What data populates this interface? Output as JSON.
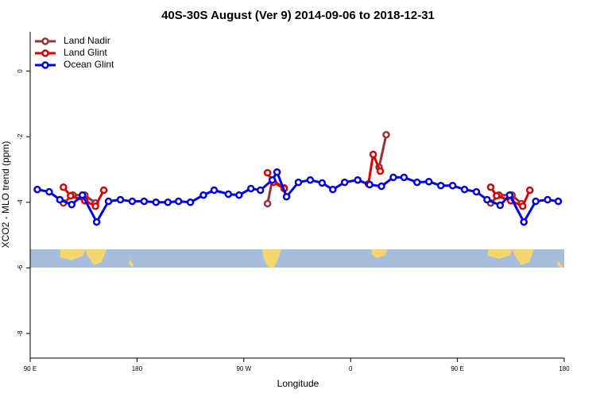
{
  "chart_data": {
    "type": "line",
    "title": "40S-30S August (Ver 9)   2014-09-06 to 2018-12-31",
    "x_label": "Longitude",
    "y_label": "XCO2 - MLO trend (ppm)",
    "xlim": [
      90,
      540
    ],
    "xticks": [
      {
        "value": 90,
        "label": "90 E"
      },
      {
        "value": 180,
        "label": "180"
      },
      {
        "value": 270,
        "label": "90 W"
      },
      {
        "value": 360,
        "label": "0"
      },
      {
        "value": 450,
        "label": "90 E"
      },
      {
        "value": 540,
        "label": "180"
      }
    ],
    "ylim": [
      -8.75,
      1.2
    ],
    "yticks": [
      0,
      -2,
      -4,
      -6,
      -8
    ],
    "legend": "top-left",
    "series": [
      {
        "name": "Land Nadir",
        "color": "#993333",
        "x": [
          118,
          126,
          136,
          145,
          null,
          290,
          294,
          304,
          null,
          384,
          390,
          null,
          478,
          485,
          496,
          504
        ],
        "values": [
          -4.02,
          -3.78,
          -3.78,
          -4.02,
          null,
          -4.04,
          -3.32,
          -3.56,
          null,
          -2.93,
          -1.94,
          null,
          -4.02,
          -3.78,
          -3.78,
          -4.04
        ]
      },
      {
        "name": "Land Glint",
        "color": "#e00000",
        "x": [
          118,
          124,
          136,
          145,
          152,
          null,
          290,
          295,
          304,
          null,
          375,
          379,
          385,
          null,
          478,
          483,
          495,
          505,
          511
        ],
        "values": [
          -3.54,
          -3.8,
          -3.95,
          -4.12,
          -3.63,
          null,
          -3.1,
          -3.39,
          -3.58,
          null,
          -3.44,
          -2.54,
          -3.05,
          null,
          -3.54,
          -3.8,
          -3.95,
          -4.12,
          -3.63
        ]
      },
      {
        "name": "Ocean Glint",
        "color": "#0000ee",
        "x": [
          96,
          106,
          115,
          125,
          134,
          146,
          156,
          166,
          176,
          186,
          196,
          206,
          215,
          225,
          236,
          245,
          257,
          266,
          276,
          284,
          294,
          298,
          306,
          316,
          326,
          336,
          345,
          355,
          366,
          376,
          386,
          396,
          405,
          416,
          426,
          436,
          446,
          456,
          466,
          475,
          486,
          494,
          506,
          516,
          526,
          535
        ],
        "values": [
          -3.61,
          -3.68,
          -3.92,
          -4.07,
          -3.78,
          -4.6,
          -3.97,
          -3.92,
          -3.97,
          -3.97,
          -4.0,
          -4.0,
          -3.97,
          -4.0,
          -3.78,
          -3.63,
          -3.75,
          -3.78,
          -3.58,
          -3.63,
          -3.32,
          -3.08,
          -3.83,
          -3.39,
          -3.32,
          -3.41,
          -3.61,
          -3.39,
          -3.32,
          -3.46,
          -3.51,
          -3.24,
          -3.24,
          -3.39,
          -3.37,
          -3.49,
          -3.49,
          -3.61,
          -3.68,
          -3.92,
          -4.09,
          -3.78,
          -4.6,
          -3.97,
          -3.92,
          -3.97
        ]
      }
    ]
  }
}
